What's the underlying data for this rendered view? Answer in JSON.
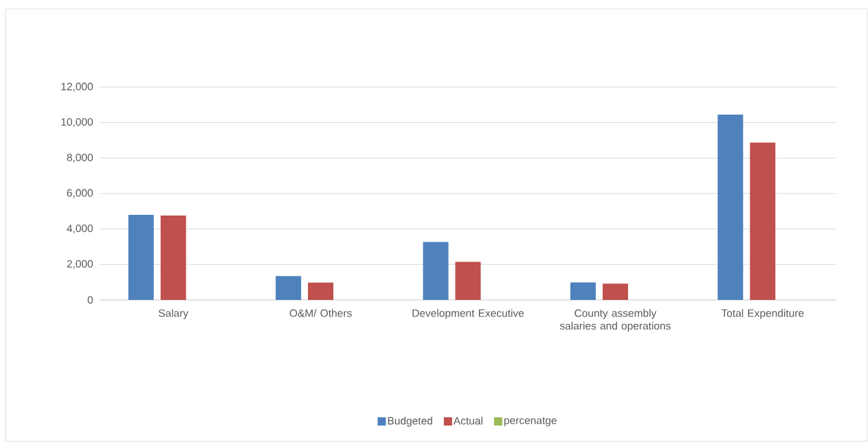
{
  "chart_data": {
    "type": "bar",
    "categories": [
      "Salary",
      "O&M/ Others",
      "Development Executive",
      "County assembly salaries and operations",
      "Total Expenditure"
    ],
    "series": [
      {
        "name": "Budgeted",
        "color": "#4f81bd",
        "values": [
          4800,
          1340,
          3270,
          985,
          10450
        ]
      },
      {
        "name": "Actual",
        "color": "#c0504d",
        "values": [
          4760,
          980,
          2150,
          920,
          8870
        ]
      },
      {
        "name": "percenatge",
        "color": "#9bbb59",
        "values": [
          null,
          null,
          null,
          null,
          null
        ]
      }
    ],
    "ylim": [
      0,
      12000
    ],
    "yticks": [
      {
        "value": 0,
        "label": "0"
      },
      {
        "value": 2000,
        "label": "2,000"
      },
      {
        "value": 4000,
        "label": "4,000"
      },
      {
        "value": 6000,
        "label": "6,000"
      },
      {
        "value": 8000,
        "label": "8,000"
      },
      {
        "value": 10000,
        "label": "10,000"
      },
      {
        "value": 12000,
        "label": "12,000"
      }
    ],
    "grid": "y",
    "legend": "bottom"
  }
}
